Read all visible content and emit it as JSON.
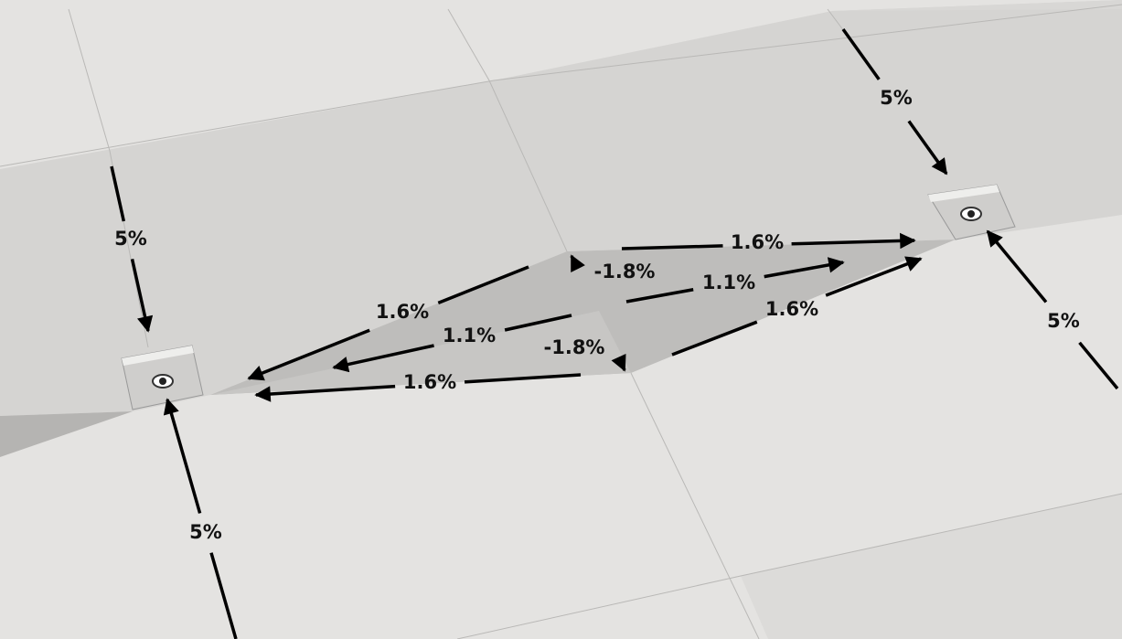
{
  "arrows": [
    {
      "label": "5%"
    },
    {
      "label": "5%"
    },
    {
      "label": "5%"
    },
    {
      "label": "5%"
    },
    {
      "label": "1.6%"
    },
    {
      "label": "1.1%"
    },
    {
      "label": "1.6%"
    },
    {
      "label": "-1.8%"
    },
    {
      "label": "-1.8%"
    },
    {
      "label": "1.6%"
    },
    {
      "label": "1.1%"
    },
    {
      "label": "1.6%"
    }
  ]
}
